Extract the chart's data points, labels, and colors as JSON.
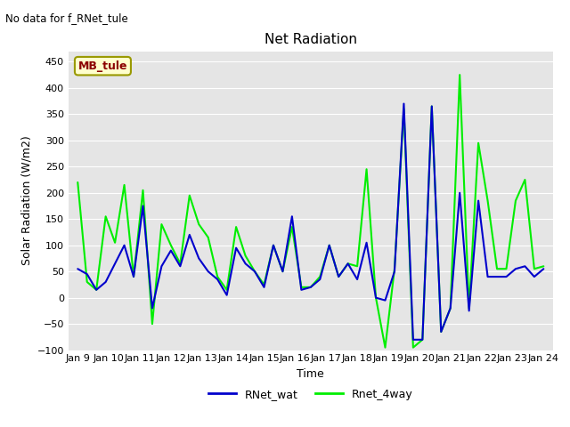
{
  "title": "Net Radiation",
  "ylabel": "Solar Radiation (W/m2)",
  "xlabel": "Time",
  "no_data_text": "No data for f_RNet_tule",
  "mb_tule_label": "MB_tule",
  "ylim": [
    -100,
    470
  ],
  "yticks": [
    -100,
    -50,
    0,
    50,
    100,
    150,
    200,
    250,
    300,
    350,
    400,
    450
  ],
  "xtick_labels": [
    "Jan 9",
    "Jan 10",
    "Jan 11",
    "Jan 12",
    "Jan 13",
    "Jan 14",
    "Jan 15",
    "Jan 16",
    "Jan 17",
    "Jan 18",
    "Jan 19",
    "Jan 20",
    "Jan 21",
    "Jan 22",
    "Jan 23",
    "Jan 24"
  ],
  "blue_color": "#0000cc",
  "green_color": "#00ee00",
  "blue_label": "RNet_wat",
  "green_label": "Rnet_4way",
  "x_blue": [
    0,
    1,
    2,
    3,
    4,
    5,
    6,
    7,
    8,
    9,
    10,
    11,
    12,
    13,
    14,
    15,
    16,
    17,
    18,
    19,
    20,
    21,
    22,
    23,
    24,
    25,
    26,
    27,
    28,
    29,
    30,
    31,
    32,
    33,
    34,
    35,
    36,
    37,
    38,
    39,
    40,
    41,
    42,
    43,
    44,
    45,
    46,
    47,
    48,
    49,
    50
  ],
  "y_blue": [
    55,
    45,
    15,
    30,
    65,
    100,
    40,
    175,
    -20,
    60,
    90,
    60,
    120,
    75,
    50,
    35,
    5,
    95,
    65,
    50,
    20,
    100,
    50,
    155,
    15,
    20,
    35,
    100,
    40,
    65,
    35,
    105,
    0,
    -5,
    50,
    370,
    -80,
    -80,
    365,
    -65,
    -20,
    200,
    -25,
    185,
    40,
    40,
    40,
    55,
    60,
    40,
    55
  ],
  "x_green": [
    0,
    1,
    2,
    3,
    4,
    5,
    6,
    7,
    8,
    9,
    10,
    11,
    12,
    13,
    14,
    15,
    16,
    17,
    18,
    19,
    20,
    21,
    22,
    23,
    24,
    25,
    26,
    27,
    28,
    29,
    30,
    31,
    32,
    33,
    34,
    35,
    36,
    37,
    38,
    39,
    40,
    41,
    42,
    43,
    44,
    45,
    46,
    47,
    48,
    49,
    50
  ],
  "y_green": [
    220,
    30,
    15,
    155,
    105,
    215,
    40,
    205,
    -50,
    140,
    100,
    65,
    195,
    140,
    115,
    40,
    15,
    135,
    80,
    50,
    25,
    100,
    50,
    135,
    20,
    20,
    40,
    100,
    40,
    65,
    60,
    245,
    0,
    -95,
    55,
    360,
    -95,
    -80,
    365,
    -65,
    -20,
    425,
    -20,
    295,
    185,
    55,
    55,
    185,
    225,
    55,
    60
  ]
}
